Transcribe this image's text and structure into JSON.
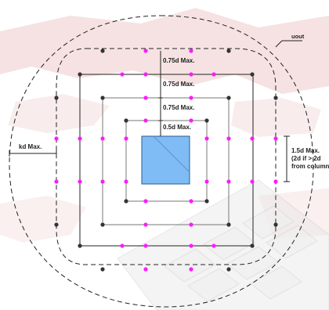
{
  "labels": {
    "spacing_1": "0.75d Max.",
    "spacing_2": "0.75d Max.",
    "spacing_3": "0.75d Max.",
    "first_perimeter": "0.5d Max.",
    "u_out": "uout",
    "kd": "kd Max.",
    "side_line1": "1.5d Max.",
    "side_line2": "(2d if > 2d",
    "side_line3": "from column"
  },
  "colors": {
    "column_fill": "#7fbcf5",
    "column_stroke": "#2a5d8f",
    "stud_inner": "#ff1aff",
    "stud_outer": "#333333",
    "perimeter_line": "#222222",
    "background_tint": "#f3d9d9"
  }
}
